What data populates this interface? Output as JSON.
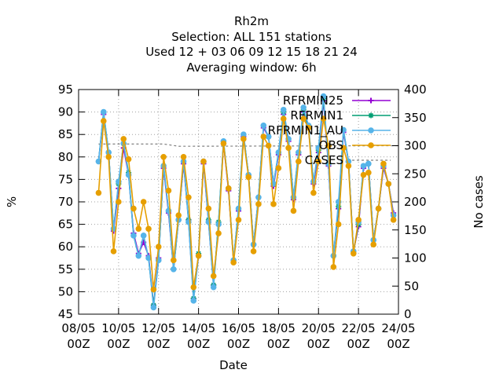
{
  "chart_data": {
    "type": "line",
    "title": [
      "Rh2m",
      "Selection: ALL     151 stations",
      "Used  12 + 03 06 09 12 15 18 21 24",
      "Averaging window:  6h"
    ],
    "xlabel": "Date",
    "ylabel": "%",
    "y2label": "No cases",
    "xlim": [
      0,
      16
    ],
    "ylim": [
      45,
      95
    ],
    "y2lim": [
      0,
      400
    ],
    "x_ticks": [
      {
        "x": 0,
        "line1": "08/05",
        "line2": "00Z"
      },
      {
        "x": 2,
        "line1": "10/05",
        "line2": "00Z"
      },
      {
        "x": 4,
        "line1": "12/05",
        "line2": "00Z"
      },
      {
        "x": 6,
        "line1": "14/05",
        "line2": "00Z"
      },
      {
        "x": 8,
        "line1": "16/05",
        "line2": "00Z"
      },
      {
        "x": 10,
        "line1": "18/05",
        "line2": "00Z"
      },
      {
        "x": 12,
        "line1": "20/05",
        "line2": "00Z"
      },
      {
        "x": 14,
        "line1": "22/05",
        "line2": "00Z"
      },
      {
        "x": 16,
        "line1": "24/05",
        "line2": "00Z"
      }
    ],
    "y_ticks": [
      45,
      50,
      55,
      60,
      65,
      70,
      75,
      80,
      85,
      90,
      95
    ],
    "y2_ticks": [
      0,
      50,
      100,
      150,
      200,
      250,
      300,
      350,
      400
    ],
    "x": [
      1.0,
      1.25,
      1.5,
      1.75,
      2.0,
      2.25,
      2.5,
      2.75,
      3.0,
      3.25,
      3.5,
      3.75,
      4.0,
      4.25,
      4.5,
      4.75,
      5.0,
      5.25,
      5.5,
      5.75,
      6.0,
      6.25,
      6.5,
      6.75,
      7.0,
      7.25,
      7.5,
      7.75,
      8.0,
      8.25,
      8.5,
      8.75,
      9.0,
      9.25,
      9.5,
      9.75,
      10.0,
      10.25,
      10.5,
      10.75,
      11.0,
      11.25,
      11.5,
      11.75,
      12.0,
      12.25,
      12.5,
      12.75,
      13.0,
      13.25,
      13.5,
      13.75,
      14.0,
      14.25,
      14.5,
      14.75,
      15.0,
      15.25,
      15.5,
      15.75
    ],
    "series": [
      {
        "name": "RFRMIN25",
        "color": "#9400d3",
        "marker": "plus",
        "values": [
          79,
          89.5,
          81,
          63.5,
          73,
          82,
          76,
          63,
          58.5,
          61,
          58,
          47,
          57.5,
          77.5,
          67.5,
          55,
          66,
          78.5,
          66,
          48.5,
          58,
          78.5,
          65.5,
          51.5,
          65,
          83,
          72.5,
          57,
          68,
          84.5,
          76,
          60.5,
          71,
          86.5,
          84.5,
          73.5,
          80.5,
          89.5,
          83.5,
          70.5,
          80.5,
          90,
          86.5,
          74,
          81,
          92.5,
          78,
          58,
          68.5,
          85.5,
          79,
          59,
          64.5,
          77.5,
          78.5,
          61.5,
          68.5,
          77.5,
          74,
          67.5
        ]
      },
      {
        "name": "RFRMIN1",
        "color": "#009e73",
        "marker": "star",
        "values": [
          79,
          90,
          81,
          64,
          74,
          83,
          76.5,
          62.5,
          58,
          62.5,
          57.5,
          47,
          57,
          78,
          68,
          55,
          66,
          79,
          66,
          48.5,
          58.5,
          79,
          66,
          51.5,
          65.5,
          83.5,
          73,
          57,
          68.5,
          85,
          76,
          60.5,
          71,
          87,
          84.5,
          74,
          81,
          90,
          84,
          71,
          81,
          90.5,
          86.5,
          74.5,
          81.5,
          93,
          78.5,
          58,
          69,
          86,
          79,
          59,
          65,
          78,
          78.5,
          61.5,
          68.5,
          78,
          74,
          67
        ]
      },
      {
        "name": "RFRMIN1_AU",
        "color": "#56b4e9",
        "marker": "circle",
        "values": [
          79,
          90,
          81,
          64,
          74.5,
          83,
          76,
          62.5,
          58,
          62.5,
          57.5,
          46.5,
          57,
          78,
          68,
          55,
          66,
          79,
          65.5,
          48,
          58,
          79,
          65.5,
          51,
          65,
          83.5,
          73,
          57,
          68.5,
          85,
          76,
          60.5,
          71,
          87,
          84.5,
          74,
          81,
          90.5,
          84,
          71,
          81,
          91,
          87,
          74.5,
          82,
          93.5,
          78.5,
          58,
          70,
          86,
          79,
          59,
          65.5,
          78,
          78.5,
          61.5,
          68.5,
          78,
          74,
          67
        ]
      },
      {
        "name": "OBS",
        "color": "#e69f00",
        "marker": "circle",
        "values": [
          72,
          88,
          80,
          59,
          70,
          84,
          79.5,
          68.5,
          64,
          70,
          64,
          50.5,
          60,
          80,
          72.5,
          57,
          67,
          80,
          71,
          51,
          58,
          79,
          68.5,
          53.5,
          63,
          83,
          73,
          56.5,
          66,
          84,
          75.5,
          59,
          69.5,
          84.5,
          82.5,
          69.5,
          77.5,
          88.5,
          82,
          68,
          79,
          88.5,
          86.5,
          72,
          79,
          88.5,
          82.5,
          55.5,
          65,
          82,
          78,
          58.5,
          66,
          76,
          76.5,
          60.5,
          68.5,
          78.5,
          74,
          66
        ]
      }
    ],
    "cases": {
      "name": "CASES",
      "color": "#808080",
      "style": "dashed",
      "x": [
        1.0,
        4.25,
        5.0,
        16.0
      ],
      "values": [
        303,
        303,
        299,
        300
      ]
    }
  }
}
